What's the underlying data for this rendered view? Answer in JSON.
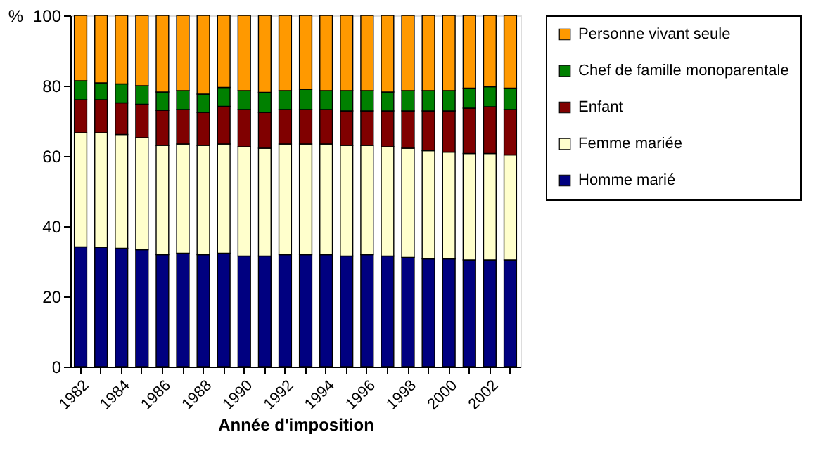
{
  "chart_data": {
    "type": "bar",
    "stacked": true,
    "xlabel": "Année d'imposition",
    "ylabel": "%",
    "categories": [
      "1982",
      null,
      "1984",
      null,
      "1986",
      null,
      "1988",
      null,
      "1990",
      null,
      "1992",
      null,
      "1994",
      null,
      "1996",
      null,
      "1998",
      null,
      "2000",
      null,
      "2002",
      null
    ],
    "series": [
      {
        "name": "Homme marié",
        "color": "#000080",
        "values": [
          34.1,
          34.0,
          33.7,
          33.3,
          31.9,
          32.3,
          31.9,
          32.3,
          31.5,
          31.5,
          31.9,
          31.9,
          31.9,
          31.5,
          31.9,
          31.5,
          31.1,
          30.7,
          30.7,
          30.4,
          30.4,
          30.4
        ]
      },
      {
        "name": "Femme mariée",
        "color": "#ffffcc",
        "values": [
          32.5,
          32.6,
          32.4,
          31.9,
          31.1,
          31.1,
          31.1,
          31.1,
          31.1,
          30.7,
          31.5,
          31.5,
          31.5,
          31.5,
          31.1,
          31.1,
          31.1,
          30.8,
          30.4,
          30.3,
          30.3,
          29.9
        ]
      },
      {
        "name": "Enfant",
        "color": "#800000",
        "values": [
          9.4,
          9.4,
          9.0,
          9.5,
          10.0,
          9.8,
          9.4,
          10.7,
          10.6,
          10.2,
          9.8,
          9.8,
          9.8,
          9.8,
          9.8,
          10.2,
          10.6,
          11.3,
          11.7,
          12.9,
          13.3,
          12.9
        ]
      },
      {
        "name": "Chef de famille monoparentale",
        "color": "#008000",
        "values": [
          5.4,
          4.8,
          5.4,
          5.3,
          5.2,
          5.4,
          5.2,
          5.4,
          5.4,
          5.7,
          5.4,
          5.8,
          5.4,
          5.8,
          5.8,
          5.4,
          5.8,
          5.8,
          5.8,
          5.7,
          5.7,
          6.1
        ]
      },
      {
        "name": "Personne vivant seule",
        "color": "#ff9900",
        "values": [
          18.6,
          19.2,
          19.5,
          20.0,
          21.8,
          21.4,
          22.4,
          20.5,
          21.4,
          21.9,
          21.4,
          21.0,
          21.4,
          21.4,
          21.4,
          21.8,
          21.4,
          21.4,
          21.4,
          20.7,
          20.3,
          20.7
        ]
      }
    ],
    "ylim": [
      0,
      100
    ],
    "yticks": [
      0,
      20,
      40,
      60,
      80,
      100
    ],
    "grid": false,
    "legend": "right"
  }
}
